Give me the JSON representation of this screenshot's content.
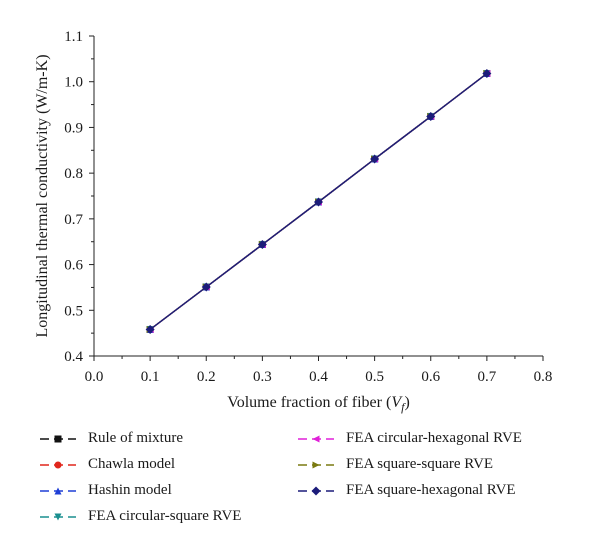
{
  "chart_data": {
    "type": "line",
    "title": "",
    "xlabel": "Volume fraction of fiber (",
    "xlabel_var": "V",
    "xlabel_sub": "f",
    "xlabel_close": ")",
    "ylabel": "Longitudinal thermal conductivity (W/m-K)",
    "xlim": [
      0.0,
      0.8
    ],
    "ylim": [
      0.4,
      1.1
    ],
    "x_ticks": [
      "0.0",
      "0.1",
      "0.2",
      "0.3",
      "0.4",
      "0.5",
      "0.6",
      "0.7",
      "0.8"
    ],
    "y_ticks": [
      "0.4",
      "0.5",
      "0.6",
      "0.7",
      "0.8",
      "0.9",
      "1.0",
      "1.1"
    ],
    "grid": false,
    "legend_position": "bottom",
    "x": [
      0.1,
      0.2,
      0.3,
      0.4,
      0.5,
      0.6,
      0.7
    ],
    "series": [
      {
        "name": "Rule of mixture",
        "color": "#111111",
        "marker": "square",
        "values": [
          0.458,
          0.551,
          0.644,
          0.737,
          0.831,
          0.924,
          1.018
        ]
      },
      {
        "name": "Chawla model",
        "color": "#e0261c",
        "marker": "circle",
        "values": [
          0.458,
          0.551,
          0.644,
          0.737,
          0.831,
          0.924,
          1.018
        ]
      },
      {
        "name": "Hashin model",
        "color": "#1f3fd6",
        "marker": "triangle-up",
        "values": [
          0.458,
          0.551,
          0.644,
          0.737,
          0.831,
          0.924,
          1.018
        ]
      },
      {
        "name": "FEA circular-square RVE",
        "color": "#1a8f8f",
        "marker": "triangle-down",
        "values": [
          0.458,
          0.551,
          0.644,
          0.737,
          0.831,
          0.924,
          1.018
        ]
      },
      {
        "name": "FEA circular-hexagonal RVE",
        "color": "#e020d8",
        "marker": "triangle-left",
        "values": [
          0.458,
          0.551,
          0.644,
          0.737,
          0.831,
          0.924,
          1.018
        ]
      },
      {
        "name": "FEA square-square RVE",
        "color": "#7a7a10",
        "marker": "triangle-right",
        "values": [
          0.458,
          0.551,
          0.644,
          0.737,
          0.831,
          0.924,
          1.018
        ]
      },
      {
        "name": "FEA square-hexagonal RVE",
        "color": "#1c1c7a",
        "marker": "diamond",
        "values": [
          0.458,
          0.551,
          0.644,
          0.737,
          0.831,
          0.924,
          1.018
        ]
      }
    ]
  }
}
